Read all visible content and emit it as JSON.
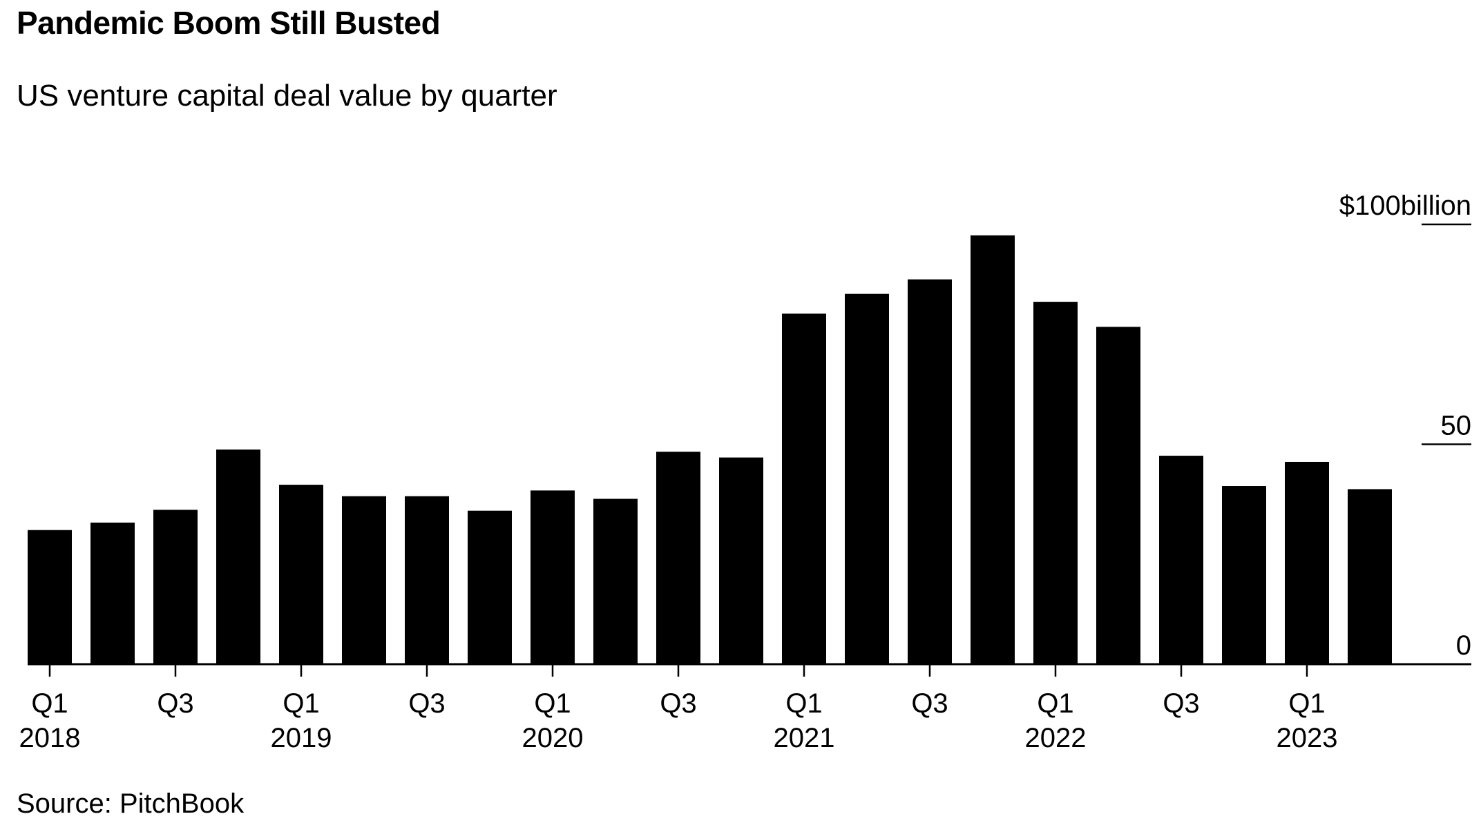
{
  "title": "Pandemic Boom Still Busted",
  "subtitle": "US venture capital deal value by quarter",
  "source": "Source: PitchBook",
  "colors": {
    "bar": "#000000",
    "background": "#ffffff",
    "axis": "#000000"
  },
  "chart_data": {
    "type": "bar",
    "categories": [
      "Q1 2018",
      "Q2 2018",
      "Q3 2018",
      "Q4 2018",
      "Q1 2019",
      "Q2 2019",
      "Q3 2019",
      "Q4 2019",
      "Q1 2020",
      "Q2 2020",
      "Q3 2020",
      "Q4 2020",
      "Q1 2021",
      "Q2 2021",
      "Q3 2021",
      "Q4 2021",
      "Q1 2022",
      "Q2 2022",
      "Q3 2022",
      "Q4 2022",
      "Q1 2023",
      "Q2 2023"
    ],
    "values": [
      30.5,
      32.2,
      35.1,
      48.8,
      40.8,
      38.2,
      38.2,
      34.9,
      39.5,
      37.6,
      48.3,
      47.0,
      79.7,
      84.2,
      87.5,
      97.5,
      82.4,
      76.7,
      47.4,
      40.5,
      46.0,
      39.8
    ],
    "x_tick_labels": [
      {
        "index": 0,
        "quarter": "Q1",
        "year": "2018"
      },
      {
        "index": 2,
        "quarter": "Q3",
        "year": ""
      },
      {
        "index": 4,
        "quarter": "Q1",
        "year": "2019"
      },
      {
        "index": 6,
        "quarter": "Q3",
        "year": ""
      },
      {
        "index": 8,
        "quarter": "Q1",
        "year": "2020"
      },
      {
        "index": 10,
        "quarter": "Q3",
        "year": ""
      },
      {
        "index": 12,
        "quarter": "Q1",
        "year": "2021"
      },
      {
        "index": 14,
        "quarter": "Q3",
        "year": ""
      },
      {
        "index": 16,
        "quarter": "Q1",
        "year": "2022"
      },
      {
        "index": 18,
        "quarter": "Q3",
        "year": ""
      },
      {
        "index": 20,
        "quarter": "Q1",
        "year": "2023"
      }
    ],
    "y_ticks": [
      {
        "value": 100,
        "label": "$100billion"
      },
      {
        "value": 50,
        "label": "50"
      },
      {
        "value": 0,
        "label": "0"
      }
    ],
    "ylim": [
      0,
      100
    ],
    "y_axis_side": "right",
    "grid": false,
    "legend": "none"
  }
}
